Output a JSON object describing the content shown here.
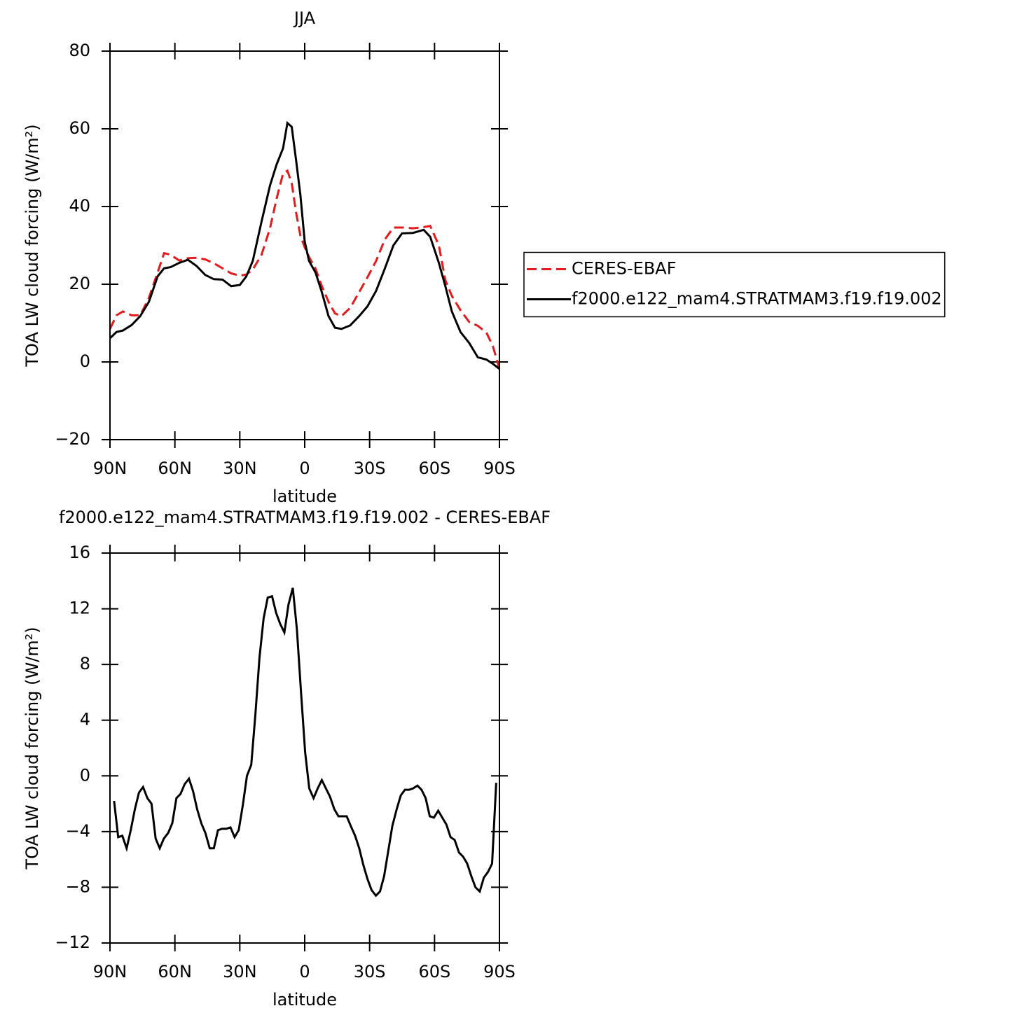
{
  "chart_data": [
    {
      "type": "line",
      "title": "JJA",
      "xlabel": "latitude",
      "ylabel": "TOA LW cloud forcing (W/m²)",
      "xlim": [
        90,
        -90
      ],
      "xticks": [
        {
          "value": 90,
          "label": "90N"
        },
        {
          "value": 60,
          "label": "60N"
        },
        {
          "value": 30,
          "label": "30N"
        },
        0,
        {
          "value": -30,
          "label": "30S"
        },
        {
          "value": -60,
          "label": "60S"
        },
        {
          "value": -90,
          "label": "90S"
        }
      ],
      "ylim": [
        -20,
        80
      ],
      "yticks": [
        -20,
        0,
        20,
        40,
        60,
        80
      ],
      "legend": "right",
      "x": [
        90,
        87,
        84,
        80,
        76,
        72,
        68,
        65,
        62,
        58,
        54,
        50,
        46,
        42,
        38,
        34,
        30,
        27,
        24,
        20,
        16,
        13,
        10,
        8,
        6,
        4,
        2,
        0,
        -2,
        -5,
        -8,
        -11,
        -14,
        -17,
        -21,
        -25,
        -29,
        -33,
        -37,
        -41,
        -45,
        -50,
        -55,
        -58,
        -62,
        -65,
        -68,
        -72,
        -76,
        -80,
        -84,
        -87,
        -90
      ],
      "series": [
        {
          "name": "CERES-EBAF",
          "color": "#e41a1c",
          "line_style": "dashed",
          "values": [
            8.5,
            12,
            13,
            12,
            12,
            16.5,
            23,
            28,
            27.6,
            26.1,
            26.7,
            26.8,
            26.4,
            25.4,
            24.1,
            22.8,
            22.2,
            22.5,
            23.8,
            27.5,
            34.5,
            42,
            48.5,
            49.2,
            46,
            38.5,
            32.5,
            29.5,
            27,
            24,
            19.4,
            15.5,
            12.5,
            11.8,
            13.9,
            17.8,
            21.8,
            26,
            31.5,
            34.6,
            34.6,
            34.4,
            34.7,
            35,
            30,
            21,
            17,
            13.3,
            10.3,
            9.3,
            7.5,
            4,
            -1.8
          ]
        },
        {
          "name": "f2000.e122_mam4.STRATMAM3.f19.f19.002",
          "color": "#000000",
          "line_style": "solid",
          "values": [
            6.1,
            7.7,
            8.1,
            9.5,
            11.8,
            15.5,
            22,
            24.1,
            24.4,
            25.5,
            26.3,
            24.7,
            22.4,
            21.3,
            21.2,
            19.5,
            19.8,
            22,
            26,
            36,
            45.5,
            50.8,
            55,
            61.5,
            60.5,
            52,
            43,
            31,
            26,
            23,
            17.8,
            11.8,
            8.8,
            8.5,
            9.4,
            11.7,
            14.3,
            18.3,
            24,
            30,
            33.1,
            33.2,
            34,
            32.2,
            25.5,
            19.5,
            13,
            7.7,
            4.9,
            1.2,
            0.6,
            -0.5,
            -1.8
          ]
        }
      ]
    },
    {
      "type": "line",
      "title": "f2000.e122_mam4.STRATMAM3.f19.f19.002 - CERES-EBAF",
      "xlabel": "latitude",
      "ylabel": "TOA LW cloud forcing (W/m²)",
      "xlim": [
        90,
        -90
      ],
      "xticks": [
        {
          "value": 90,
          "label": "90N"
        },
        {
          "value": 60,
          "label": "60N"
        },
        {
          "value": 30,
          "label": "30N"
        },
        0,
        {
          "value": -30,
          "label": "30S"
        },
        {
          "value": -60,
          "label": "60S"
        },
        {
          "value": -90,
          "label": "90S"
        }
      ],
      "ylim": [
        -12,
        16
      ],
      "yticks": [
        -12,
        -8,
        -4,
        0,
        4,
        8,
        12,
        16
      ],
      "x": [
        88.1,
        86.2,
        84.3,
        82.3,
        80.4,
        78.5,
        76.6,
        74.7,
        72.7,
        70.8,
        68.9,
        67.0,
        65.1,
        63.1,
        61.2,
        59.3,
        57.4,
        55.5,
        53.5,
        51.6,
        49.7,
        47.8,
        45.9,
        43.9,
        42.0,
        40.1,
        38.2,
        36.3,
        34.3,
        32.4,
        30.5,
        28.6,
        26.7,
        24.7,
        22.8,
        20.9,
        19.0,
        17.1,
        15.1,
        13.2,
        11.3,
        9.4,
        7.5,
        5.5,
        3.6,
        1.7,
        -0.2,
        -2.1,
        -4.1,
        -6.0,
        -7.9,
        -9.8,
        -11.7,
        -13.7,
        -15.6,
        -17.5,
        -19.4,
        -21.3,
        -23.3,
        -25.2,
        -27.1,
        -29.0,
        -30.9,
        -32.9,
        -34.8,
        -36.7,
        -38.6,
        -40.5,
        -42.5,
        -44.4,
        -46.3,
        -48.2,
        -50.1,
        -52.1,
        -54.0,
        -55.9,
        -57.8,
        -59.7,
        -61.7,
        -63.6,
        -65.5,
        -67.4,
        -69.3,
        -71.3,
        -73.2,
        -75.1,
        -77.0,
        -78.9,
        -80.9,
        -82.8,
        -84.7,
        -86.6,
        -88.5
      ],
      "series": [
        {
          "color": "#000000",
          "line_style": "solid",
          "values": [
            -1.8,
            -4.4,
            -4.3,
            -5.2,
            -3.9,
            -2.4,
            -1.2,
            -0.8,
            -1.6,
            -2,
            -4.5,
            -5.2,
            -4.5,
            -4.1,
            -3.4,
            -1.6,
            -1.3,
            -0.6,
            -0.2,
            -1.1,
            -2.4,
            -3.4,
            -4.1,
            -5.2,
            -5.2,
            -3.9,
            -3.8,
            -3.8,
            -3.7,
            -4.4,
            -3.9,
            -2.1,
            0,
            0.8,
            4.4,
            8.5,
            11.3,
            12.8,
            12.9,
            11.7,
            10.9,
            10.3,
            12.3,
            13.5,
            10.5,
            6,
            1.7,
            -0.9,
            -1.6,
            -0.9,
            -0.3,
            -0.9,
            -1.5,
            -2.4,
            -2.9,
            -2.9,
            -2.9,
            -3.6,
            -4.3,
            -5.2,
            -6.4,
            -7.4,
            -8.2,
            -8.6,
            -8.3,
            -7.2,
            -5.4,
            -3.6,
            -2.4,
            -1.4,
            -1,
            -1,
            -0.9,
            -0.7,
            -1,
            -1.6,
            -2.9,
            -3,
            -2.5,
            -3,
            -3.5,
            -4.4,
            -4.6,
            -5.5,
            -5.8,
            -6.3,
            -7.2,
            -8,
            -8.3,
            -7.3,
            -6.9,
            -6.3,
            -0.5
          ]
        }
      ]
    }
  ]
}
